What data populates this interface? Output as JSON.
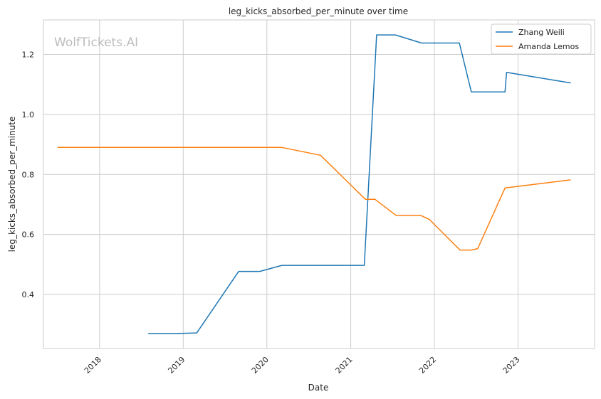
{
  "chart_data": {
    "type": "line",
    "title": "leg_kicks_absorbed_per_minute over time",
    "xlabel": "Date",
    "ylabel": "leg_kicks_absorbed_per_minute",
    "watermark": "WolfTickets.AI",
    "legend_position": "top-right",
    "grid": true,
    "xlim": [
      "2017-05-01",
      "2023-12-01"
    ],
    "ylim": [
      0.22,
      1.315
    ],
    "x_ticks": [
      "2018",
      "2019",
      "2020",
      "2021",
      "2022",
      "2023"
    ],
    "y_ticks": [
      "0.4",
      "0.6",
      "0.8",
      "1.0",
      "1.2"
    ],
    "series": [
      {
        "name": "Zhang Weili",
        "color": "#1f77b4",
        "points": [
          {
            "x": "2018-08-01",
            "y": 0.27
          },
          {
            "x": "2018-12-01",
            "y": 0.27
          },
          {
            "x": "2019-03-01",
            "y": 0.272
          },
          {
            "x": "2019-08-31",
            "y": 0.477
          },
          {
            "x": "2019-12-01",
            "y": 0.477
          },
          {
            "x": "2020-03-07",
            "y": 0.497
          },
          {
            "x": "2021-03-01",
            "y": 0.497
          },
          {
            "x": "2021-04-24",
            "y": 1.265
          },
          {
            "x": "2021-07-15",
            "y": 1.265
          },
          {
            "x": "2021-11-06",
            "y": 1.238
          },
          {
            "x": "2022-04-20",
            "y": 1.238
          },
          {
            "x": "2022-06-11",
            "y": 1.075
          },
          {
            "x": "2022-11-05",
            "y": 1.075
          },
          {
            "x": "2022-11-12",
            "y": 1.14
          },
          {
            "x": "2023-08-19",
            "y": 1.105
          }
        ]
      },
      {
        "name": "Amanda Lemos",
        "color": "#ff7f0e",
        "points": [
          {
            "x": "2017-07-01",
            "y": 0.89
          },
          {
            "x": "2020-03-07",
            "y": 0.89
          },
          {
            "x": "2020-08-22",
            "y": 0.864
          },
          {
            "x": "2021-03-06",
            "y": 0.717
          },
          {
            "x": "2021-04-17",
            "y": 0.717
          },
          {
            "x": "2021-07-17",
            "y": 0.664
          },
          {
            "x": "2021-11-01",
            "y": 0.664
          },
          {
            "x": "2021-12-10",
            "y": 0.65
          },
          {
            "x": "2022-04-23",
            "y": 0.548
          },
          {
            "x": "2022-06-11",
            "y": 0.548
          },
          {
            "x": "2022-07-09",
            "y": 0.553
          },
          {
            "x": "2022-11-05",
            "y": 0.755
          },
          {
            "x": "2023-08-19",
            "y": 0.782
          }
        ]
      }
    ]
  }
}
